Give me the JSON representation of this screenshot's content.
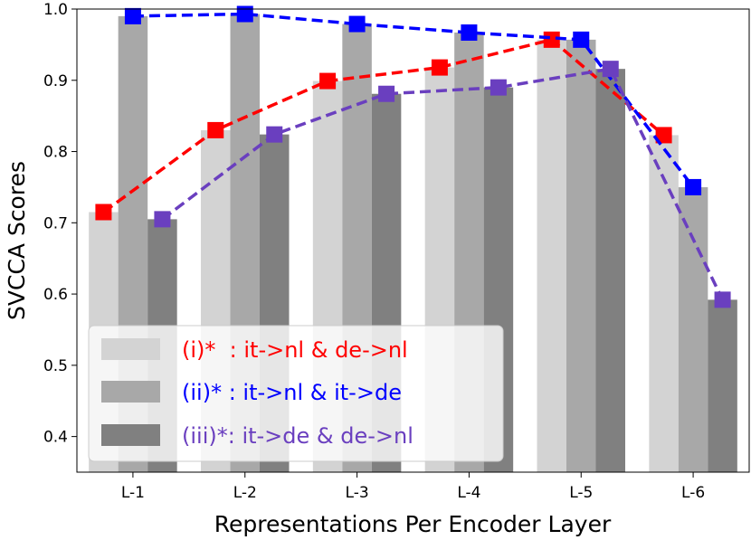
{
  "chart_data": {
    "type": "bar",
    "title": "",
    "xlabel": "Representations Per Encoder Layer",
    "ylabel": "SVCCA Scores",
    "ylim": [
      0.35,
      1.0
    ],
    "yticks": [
      "0.4",
      "0.5",
      "0.6",
      "0.7",
      "0.8",
      "0.9",
      "1.0"
    ],
    "categories": [
      "L-1",
      "L-2",
      "L-3",
      "L-4",
      "L-5",
      "L-6"
    ],
    "grid": false,
    "legend_position": "bottom-left",
    "series": [
      {
        "name": "(i)*  : it->nl & de->nl",
        "values": [
          0.715,
          0.83,
          0.899,
          0.918,
          0.957,
          0.823
        ],
        "bar_color": "#d3d3d3",
        "line_color": "#ff0000"
      },
      {
        "name": "(ii)* : it->nl & it->de",
        "values": [
          0.99,
          0.993,
          0.979,
          0.967,
          0.957,
          0.75
        ],
        "bar_color": "#a8a8a8",
        "line_color": "#0000ff"
      },
      {
        "name": "(iii)*: it->de & de->nl",
        "values": [
          0.705,
          0.824,
          0.881,
          0.89,
          0.916,
          0.592
        ],
        "bar_color": "#808080",
        "line_color": "#6a3fbf"
      }
    ]
  }
}
